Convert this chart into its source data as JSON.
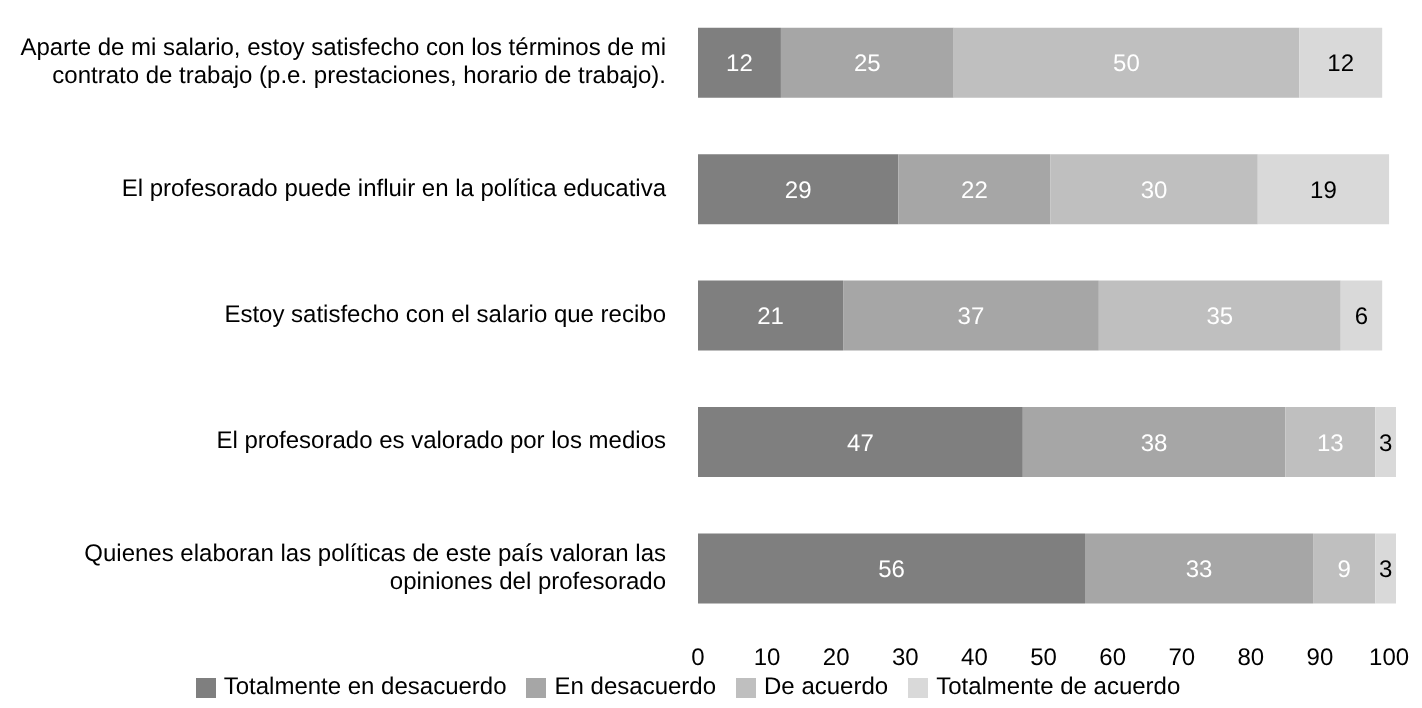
{
  "chart_data": {
    "type": "bar",
    "orientation": "horizontal",
    "stacked": true,
    "categories": [
      "Aparte de mi salario, estoy satisfecho con los términos de mi contrato de trabajo (p.e. prestaciones, horario de trabajo).",
      "El profesorado puede influir en la política educativa",
      "Estoy satisfecho con el salario que recibo",
      "El profesorado es valorado por los medios",
      "Quienes elaboran las políticas de este país valoran las opiniones del profesorado"
    ],
    "series": [
      {
        "name": "Totalmente en desacuerdo",
        "color": "#7f7f7f",
        "values": [
          12,
          29,
          21,
          47,
          56
        ]
      },
      {
        "name": "En desacuerdo",
        "color": "#a6a6a6",
        "values": [
          25,
          22,
          37,
          38,
          33
        ]
      },
      {
        "name": "De acuerdo",
        "color": "#bfbfbf",
        "values": [
          50,
          30,
          35,
          13,
          9
        ]
      },
      {
        "name": "Totalmente de acuerdo",
        "color": "#d9d9d9",
        "values": [
          12,
          19,
          6,
          3,
          3
        ]
      }
    ],
    "xlim": [
      0,
      101
    ],
    "xticks": [
      0,
      10,
      20,
      30,
      40,
      50,
      60,
      70,
      80,
      90,
      100
    ],
    "data_labels": true,
    "grid": false,
    "legend": "bottom"
  }
}
